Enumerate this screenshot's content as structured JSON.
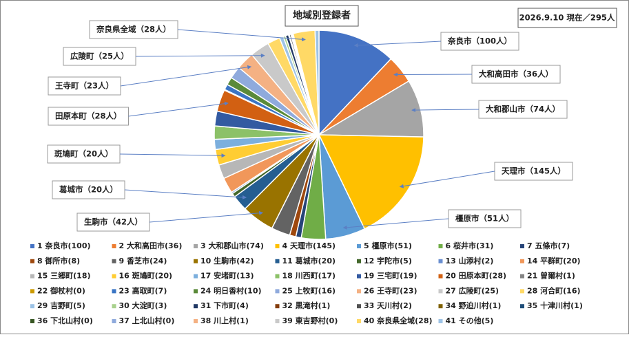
{
  "chart_data": {
    "type": "pie",
    "title": "地域別登録者",
    "subtitle": "2026.9.10 現在／295人",
    "categories": [
      "1 奈良市(100)",
      "2 大和高田市(36)",
      "3 大和郡山市(74)",
      "4 天理市(145)",
      "5 橿原市(51)",
      "6 桜井市(31)",
      "7 五條市(7)",
      "8 御所市(8)",
      "9 香芝市(24)",
      "10 生駒市(42)",
      "11 葛城市(20)",
      "12 宇陀市(5)",
      "13 山添村(2)",
      "14 平群町(20)",
      "15 三郷町(18)",
      "16 斑鳩町(20)",
      "17 安堵町(13)",
      "18 川西町(17)",
      "19 三宅町(19)",
      "20 田原本町(28)",
      "21 曽爾村(1)",
      "22 御杖村(0)",
      "23 高取町(7)",
      "24 明日香村(10)",
      "25 上牧町(16)",
      "26 王寺町(23)",
      "27 広陵町(25)",
      "28 河合町(16)",
      "29 吉野町(5)",
      "30 大淀町(3)",
      "31 下市町(4)",
      "32 黒滝村(1)",
      "33 天川村(2)",
      "34 野迫川村(1)",
      "35 十津川村(1)",
      "36 下北山村(0)",
      "37 上北山村(0)",
      "38 川上村(1)",
      "39 東吉野村(0)",
      "40 奈良県全域(28)",
      "41 その他(5)"
    ],
    "values": [
      100,
      36,
      74,
      145,
      51,
      31,
      7,
      8,
      24,
      42,
      20,
      5,
      2,
      20,
      18,
      20,
      13,
      17,
      19,
      28,
      1,
      0,
      7,
      10,
      16,
      23,
      25,
      16,
      5,
      3,
      4,
      1,
      2,
      1,
      1,
      0,
      0,
      1,
      0,
      28,
      5
    ],
    "colors": [
      "#4472c4",
      "#ed7d31",
      "#a5a5a5",
      "#ffc000",
      "#5b9bd5",
      "#70ad47",
      "#264478",
      "#9e480e",
      "#636363",
      "#997300",
      "#255e91",
      "#43682b",
      "#698ed0",
      "#f1975a",
      "#b7b7b7",
      "#ffcd33",
      "#7cafdd",
      "#8cc168",
      "#335aa1",
      "#d26012",
      "#848484",
      "#cc9a00",
      "#3a75c4",
      "#5a8a39",
      "#8faadc",
      "#f4b183",
      "#c9c9c9",
      "#ffd966",
      "#9dc3e6",
      "#a9d18e",
      "#203864",
      "#843c0c",
      "#525252",
      "#7f6000",
      "#1f4e79",
      "#375623",
      "#8faadc",
      "#f4b183",
      "#c9c9c9",
      "#ffd966",
      "#9dc3e6"
    ],
    "annotations": [
      "奈良市（100人）",
      "大和高田市（36人）",
      "大和郡山市（74人）",
      "天理市（145人）",
      "橿原市（51人）",
      "生駒市（42人）",
      "葛城市（20人）",
      "斑鳩町（20人）",
      "田原本町（28人）",
      "王寺町（23人）",
      "広陵町（25人）",
      "奈良県全域（28人）"
    ],
    "legend": "bottom"
  }
}
